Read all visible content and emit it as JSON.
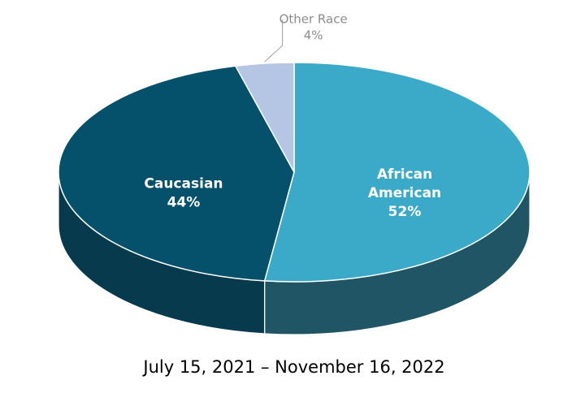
{
  "chart_data": {
    "type": "pie",
    "categories": [
      "African American",
      "Caucasian",
      "Other Race"
    ],
    "values": [
      52,
      44,
      4
    ],
    "value_labels": [
      "52%",
      "44%",
      "4%"
    ],
    "colors": [
      "#3aaac8",
      "#05506a",
      "#b4c6e4"
    ],
    "side_colors": [
      "#1f5565",
      "#073a4c",
      "#8a9bb8"
    ],
    "label_colors": [
      "#ffffff",
      "#ffffff",
      "#8c8c8c"
    ],
    "caption": "July 15, 2021 – November 16, 2022"
  }
}
